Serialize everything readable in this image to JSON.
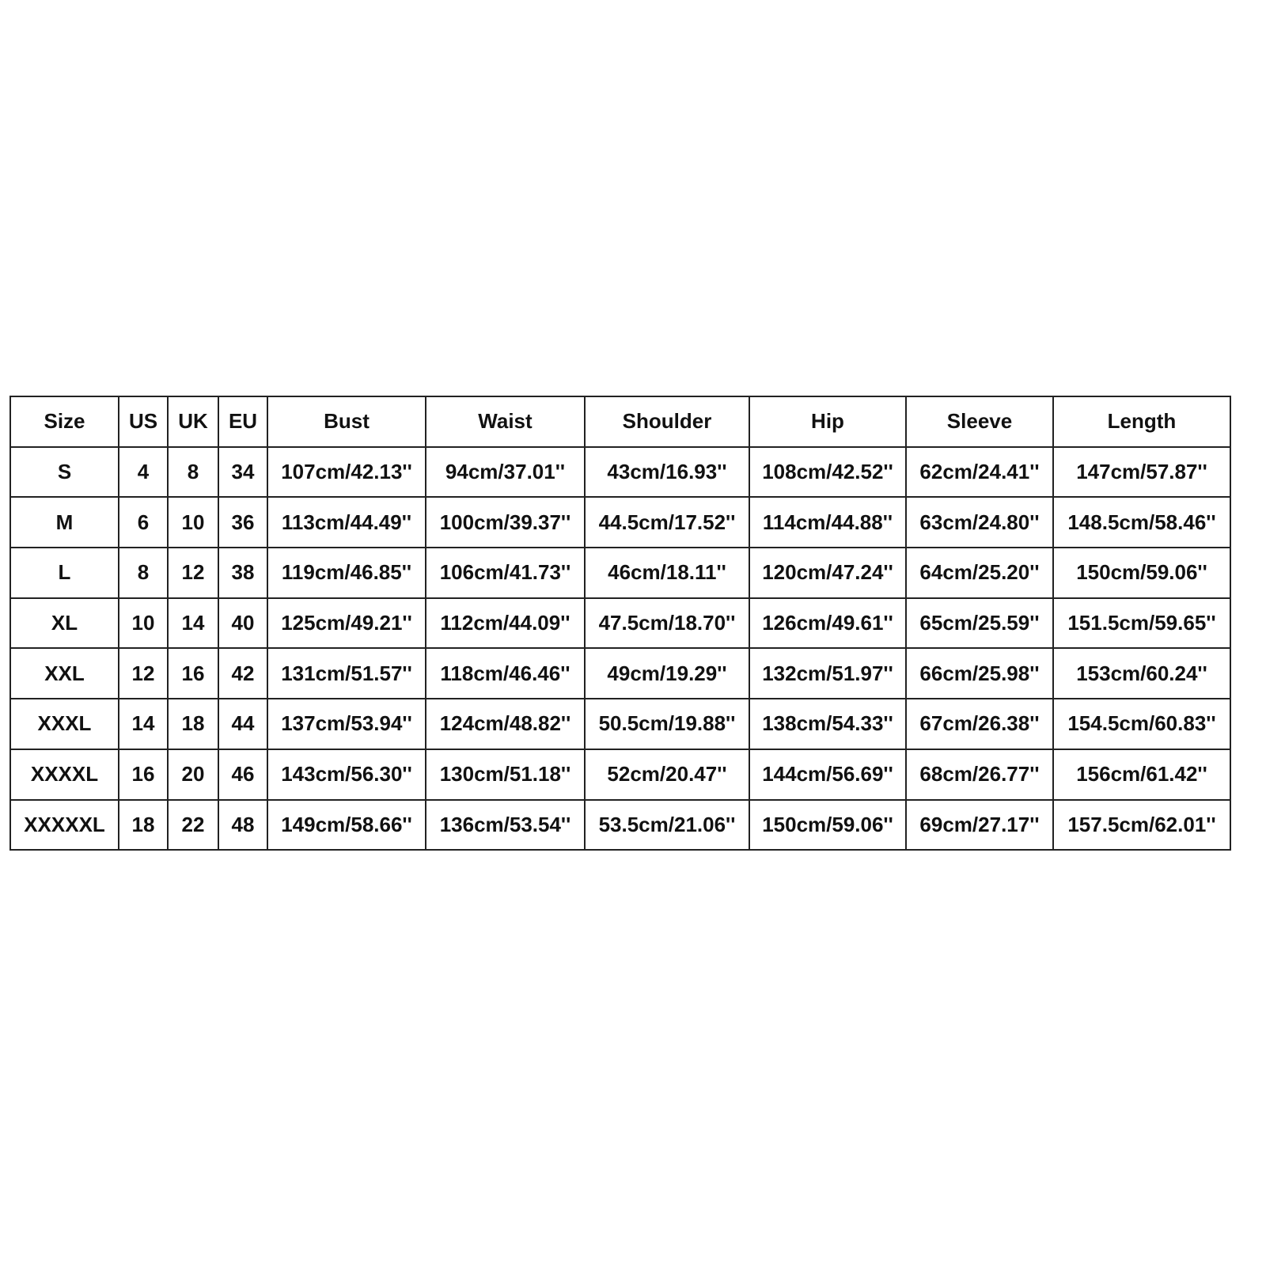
{
  "size_chart": {
    "headers": [
      "Size",
      "US",
      "UK",
      "EU",
      "Bust",
      "Waist",
      "Shoulder",
      "Hip",
      "Sleeve",
      "Length"
    ],
    "rows": [
      [
        "S",
        "4",
        "8",
        "34",
        "107cm/42.13''",
        "94cm/37.01''",
        "43cm/16.93''",
        "108cm/42.52''",
        "62cm/24.41''",
        "147cm/57.87''"
      ],
      [
        "M",
        "6",
        "10",
        "36",
        "113cm/44.49''",
        "100cm/39.37''",
        "44.5cm/17.52''",
        "114cm/44.88''",
        "63cm/24.80''",
        "148.5cm/58.46''"
      ],
      [
        "L",
        "8",
        "12",
        "38",
        "119cm/46.85''",
        "106cm/41.73''",
        "46cm/18.11''",
        "120cm/47.24''",
        "64cm/25.20''",
        "150cm/59.06''"
      ],
      [
        "XL",
        "10",
        "14",
        "40",
        "125cm/49.21''",
        "112cm/44.09''",
        "47.5cm/18.70''",
        "126cm/49.61''",
        "65cm/25.59''",
        "151.5cm/59.65''"
      ],
      [
        "XXL",
        "12",
        "16",
        "42",
        "131cm/51.57''",
        "118cm/46.46''",
        "49cm/19.29''",
        "132cm/51.97''",
        "66cm/25.98''",
        "153cm/60.24''"
      ],
      [
        "XXXL",
        "14",
        "18",
        "44",
        "137cm/53.94''",
        "124cm/48.82''",
        "50.5cm/19.88''",
        "138cm/54.33''",
        "67cm/26.38''",
        "154.5cm/60.83''"
      ],
      [
        "XXXXL",
        "16",
        "20",
        "46",
        "143cm/56.30''",
        "130cm/51.18''",
        "52cm/20.47''",
        "144cm/56.69''",
        "68cm/26.77''",
        "156cm/61.42''"
      ],
      [
        "XXXXXL",
        "18",
        "22",
        "48",
        "149cm/58.66''",
        "136cm/53.54''",
        "53.5cm/21.06''",
        "150cm/59.06''",
        "69cm/27.17''",
        "157.5cm/62.01''"
      ]
    ]
  }
}
